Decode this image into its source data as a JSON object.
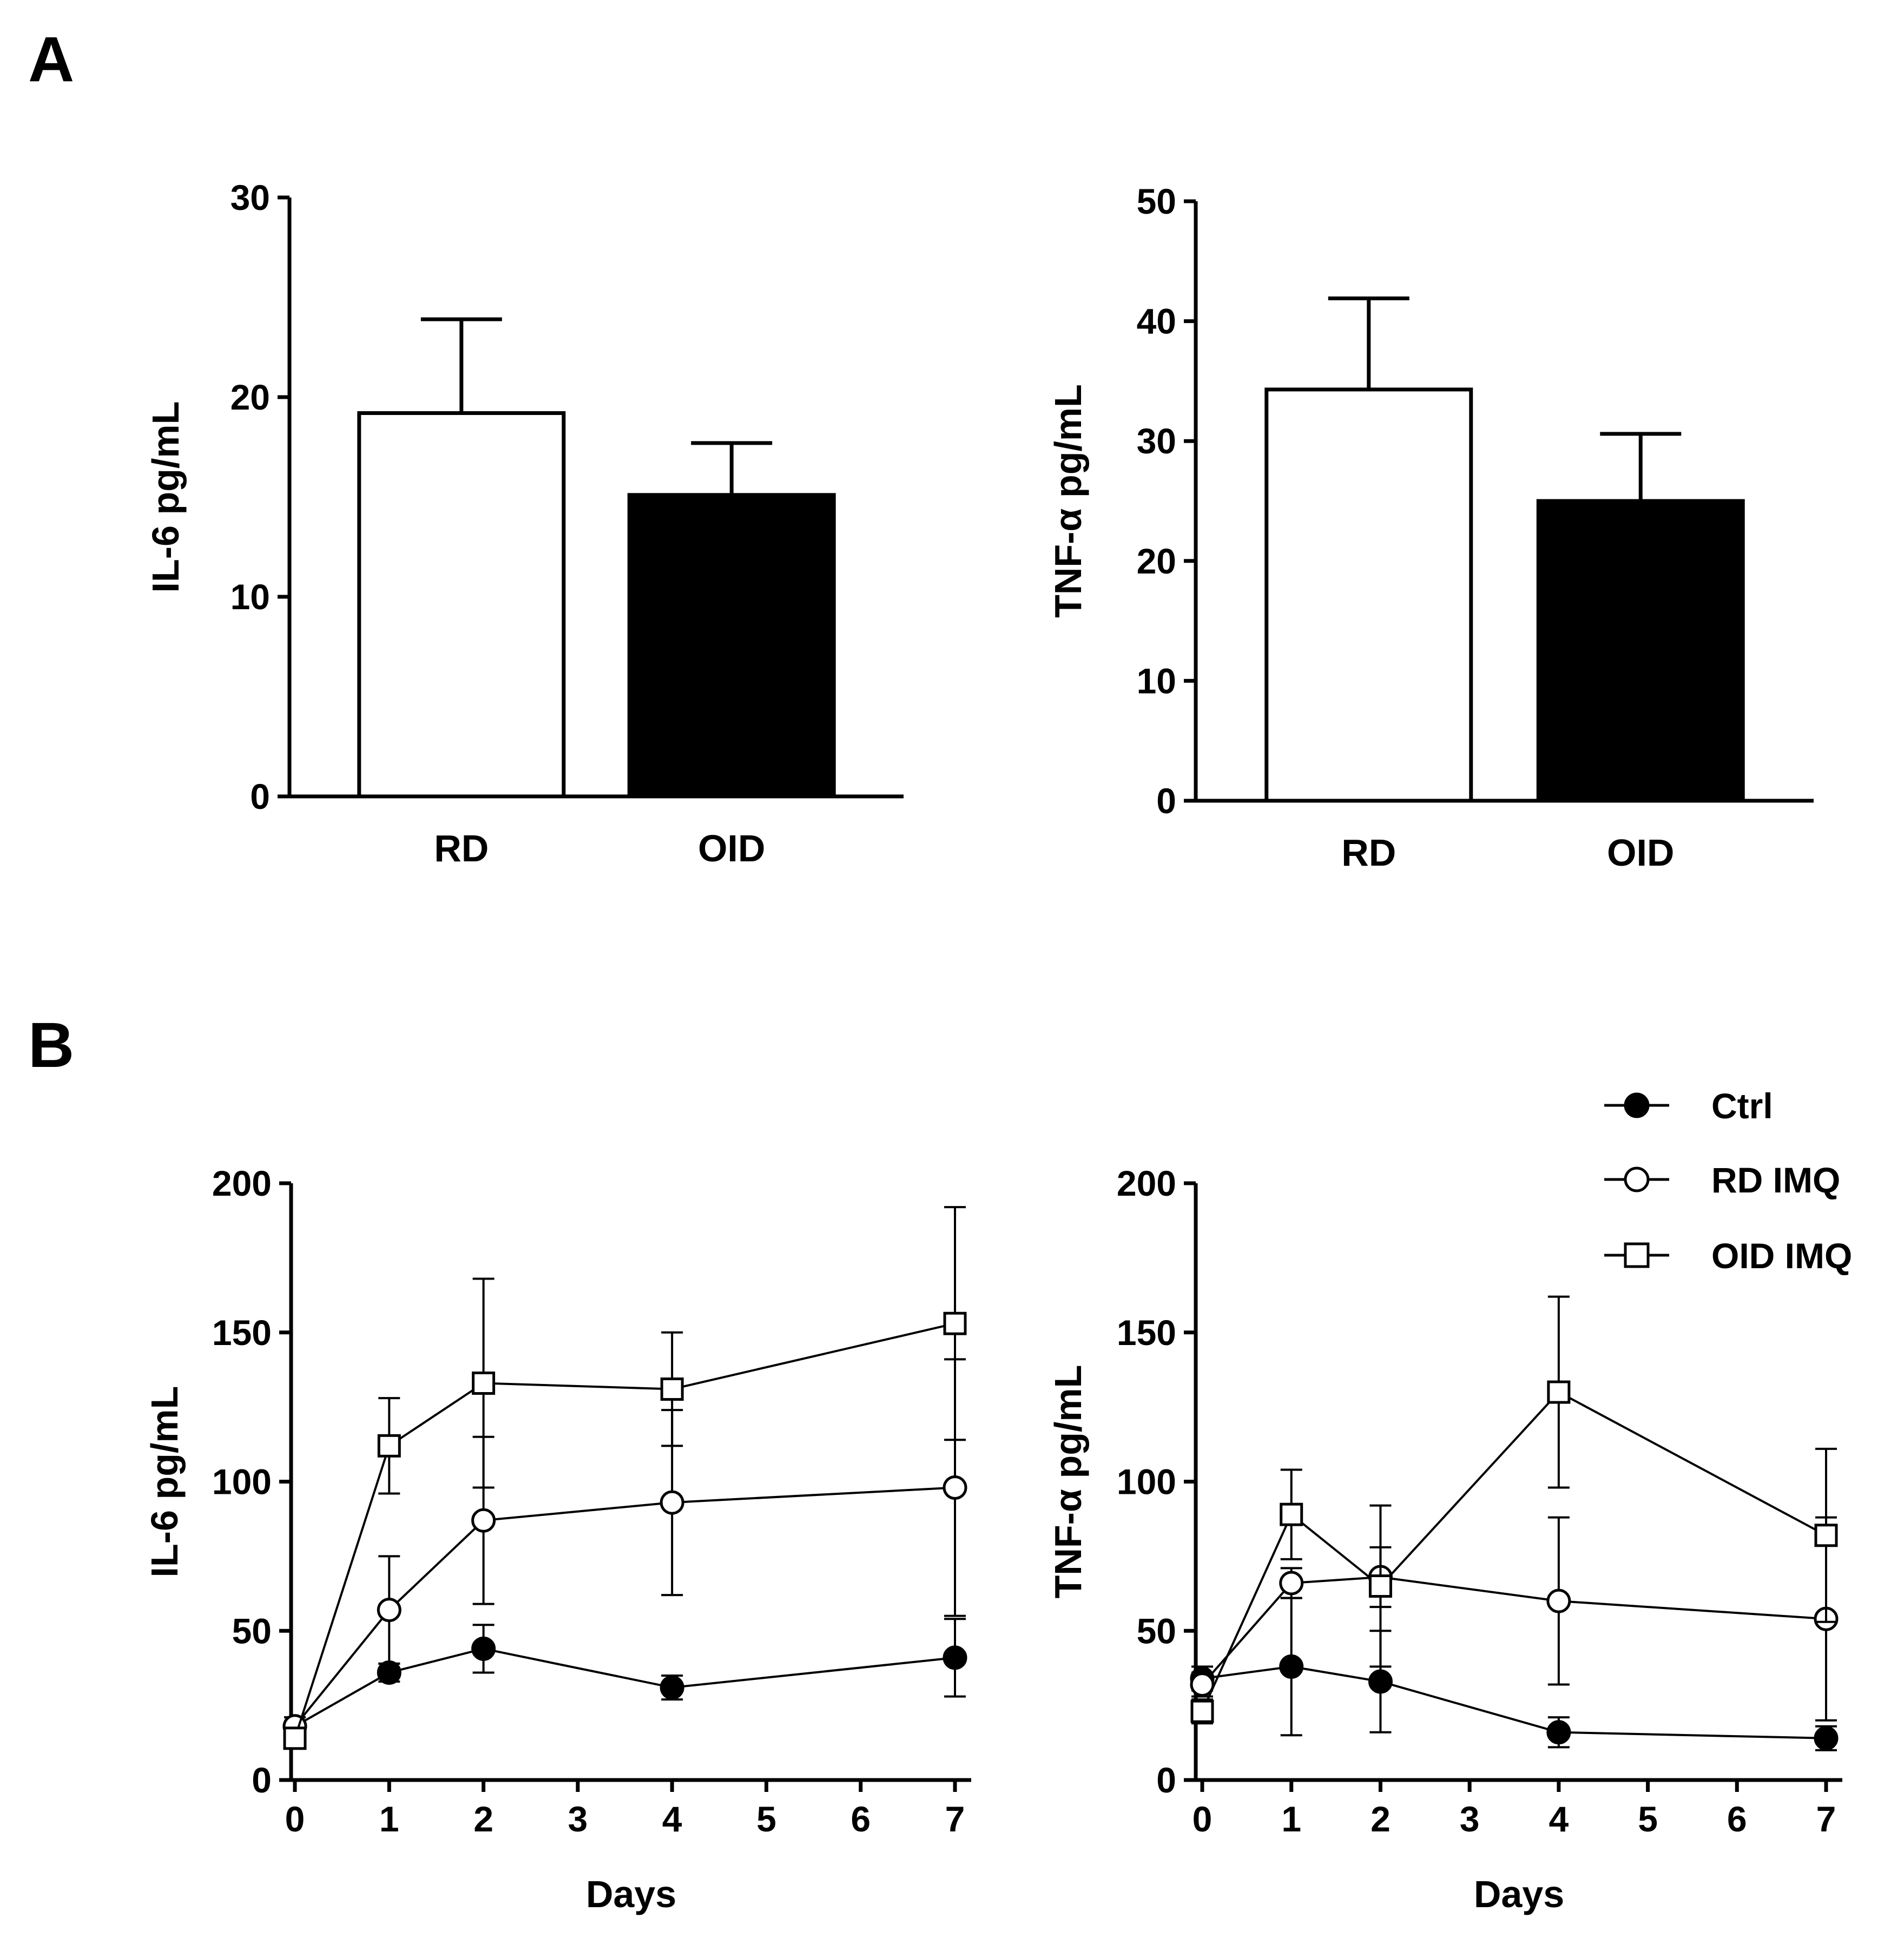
{
  "figure": {
    "panel_labels": [
      "A",
      "B"
    ]
  },
  "colors": {
    "ink": "#000000",
    "paper": "#ffffff"
  },
  "legend": {
    "items": [
      {
        "label": "Ctrl",
        "marker": "filled-circle"
      },
      {
        "label": "RD IMQ",
        "marker": "open-circle"
      },
      {
        "label": "OID IMQ",
        "marker": "open-square"
      }
    ]
  },
  "chart_data": [
    {
      "id": "A1",
      "panel": "A",
      "type": "bar",
      "title": "",
      "xlabel": "",
      "ylabel": "IL-6 pg/mL",
      "ylim": [
        0,
        30
      ],
      "yticks": [
        0,
        10,
        20,
        30
      ],
      "categories": [
        "RD",
        "OID"
      ],
      "values": [
        19.2,
        15.1
      ],
      "errors": [
        4.7,
        2.6
      ],
      "fills": [
        "white",
        "black"
      ]
    },
    {
      "id": "A2",
      "panel": "A",
      "type": "bar",
      "title": "",
      "xlabel": "",
      "ylabel": "TNF-α pg/mL",
      "ylim": [
        0,
        50
      ],
      "yticks": [
        0,
        10,
        20,
        30,
        40,
        50
      ],
      "categories": [
        "RD",
        "OID"
      ],
      "values": [
        34.3,
        25.0
      ],
      "errors": [
        7.6,
        5.6
      ],
      "fills": [
        "white",
        "black"
      ]
    },
    {
      "id": "B1",
      "panel": "B",
      "type": "line",
      "title": "",
      "xlabel": "Days",
      "ylabel": "IL-6 pg/mL",
      "ylim": [
        0,
        200
      ],
      "yticks": [
        0,
        50,
        100,
        150,
        200
      ],
      "xlim": [
        0,
        7
      ],
      "xticks": [
        0,
        1,
        2,
        3,
        4,
        5,
        6,
        7
      ],
      "x": [
        0,
        1,
        2,
        4,
        7
      ],
      "series": [
        {
          "name": "Ctrl",
          "marker": "filled-circle",
          "values": [
            18,
            36,
            44,
            31,
            41
          ],
          "errors": [
            3,
            3,
            8,
            4,
            13
          ]
        },
        {
          "name": "RD IMQ",
          "marker": "open-circle",
          "values": [
            18,
            57,
            87,
            93,
            98
          ],
          "errors": [
            3,
            18,
            28,
            31,
            43
          ]
        },
        {
          "name": "OID IMQ",
          "marker": "open-square",
          "values": [
            14,
            112,
            133,
            131,
            153
          ],
          "errors": [
            3,
            16,
            35,
            19,
            39
          ]
        }
      ]
    },
    {
      "id": "B2",
      "panel": "B",
      "type": "line",
      "title": "",
      "xlabel": "Days",
      "ylabel": "TNF-α pg/mL",
      "ylim": [
        0,
        200
      ],
      "yticks": [
        0,
        50,
        100,
        150,
        200
      ],
      "xlim": [
        0,
        7
      ],
      "xticks": [
        0,
        1,
        2,
        3,
        4,
        5,
        6,
        7
      ],
      "x": [
        0,
        1,
        2,
        4,
        7
      ],
      "series": [
        {
          "name": "Ctrl",
          "marker": "filled-circle",
          "values": [
            34,
            38,
            33,
            16,
            14
          ],
          "errors": [
            4,
            23,
            17,
            5,
            4
          ]
        },
        {
          "name": "RD IMQ",
          "marker": "open-circle",
          "values": [
            32,
            66,
            68,
            60,
            54
          ],
          "errors": [
            4,
            5,
            10,
            28,
            34
          ]
        },
        {
          "name": "OID IMQ",
          "marker": "open-square",
          "values": [
            23,
            89,
            65,
            130,
            82
          ],
          "errors": [
            4,
            15,
            27,
            32,
            29
          ]
        }
      ]
    }
  ]
}
